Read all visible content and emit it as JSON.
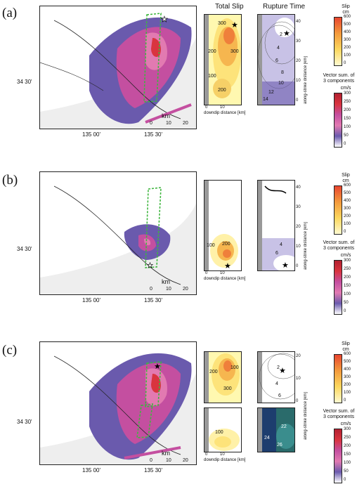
{
  "panels": [
    {
      "label": "(a)",
      "map": {
        "lat": "34 30'",
        "lon_left": "135 00'",
        "lon_right": "135 30'"
      },
      "slip_contours": [
        "300",
        "200",
        "300",
        "100",
        "200"
      ],
      "rupture_contours": [
        "2",
        "4",
        "6",
        "8",
        "10",
        "12",
        "14"
      ],
      "slip_axis": [
        "0",
        "10"
      ],
      "right_axis": [
        "0",
        "10",
        "20",
        "30",
        "40"
      ]
    },
    {
      "label": "(b)",
      "map": {
        "lat": "34 30'",
        "lon_left": "135 00'",
        "lon_right": "135 30'"
      },
      "slip_contours": [
        "100",
        "200"
      ],
      "rupture_contours": [
        "4",
        "6"
      ],
      "slip_axis": [
        "0",
        "10"
      ],
      "right_axis": [
        "0",
        "10",
        "20",
        "30",
        "40"
      ]
    },
    {
      "label": "(c)",
      "map": {
        "lat": "34 30'",
        "lon_left": "135 00'",
        "lon_right": "135 30'"
      },
      "slip_contours": [
        "200",
        "100",
        "300",
        "100"
      ],
      "rupture_contours": [
        "2",
        "4",
        "6",
        "22",
        "24",
        "26"
      ],
      "slip_axis": [
        "0",
        "10"
      ],
      "right_axis": [
        "0",
        "10",
        "20"
      ]
    }
  ],
  "scale": {
    "unit": "km",
    "ticks": [
      "0",
      "10",
      "20"
    ]
  },
  "headers": {
    "total_slip": "Total Slip",
    "rupture_time": "Rupture Time"
  },
  "labels": {
    "downdip": "downdip distance [km]",
    "along_strike": "along-strike distance [km]"
  },
  "colorbars": {
    "slip": {
      "title": "Slip",
      "unit": "cm",
      "ticks": [
        "600",
        "500",
        "400",
        "300",
        "200",
        "100",
        "0"
      ]
    },
    "vector": {
      "title": "Vector sum. of 3 components",
      "unit": "cm/s",
      "ticks": [
        "300",
        "250",
        "200",
        "150",
        "100",
        "50",
        "0"
      ]
    }
  },
  "colors": {
    "purple": "#6a5aad",
    "magenta": "#c44fa0",
    "pink": "#e27ab1",
    "red": "#d9343f",
    "green": "#3fb63f",
    "gray": "#d9d9d9"
  }
}
